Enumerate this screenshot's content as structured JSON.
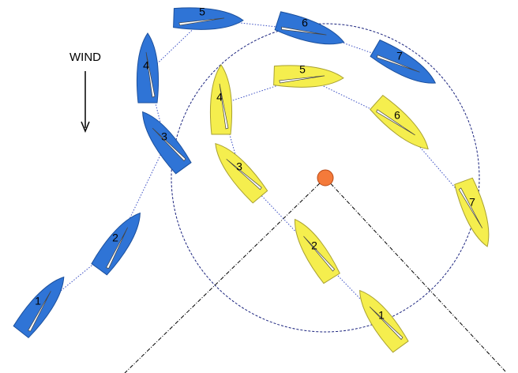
{
  "wind_label": "WIND",
  "blue_boats": [
    {
      "label": "1"
    },
    {
      "label": "2"
    },
    {
      "label": "3"
    },
    {
      "label": "4"
    },
    {
      "label": "5"
    },
    {
      "label": "6"
    },
    {
      "label": "7"
    }
  ],
  "yellow_boats": [
    {
      "label": "1"
    },
    {
      "label": "2"
    },
    {
      "label": "3"
    },
    {
      "label": "4"
    },
    {
      "label": "5"
    },
    {
      "label": "6"
    },
    {
      "label": "7"
    }
  ]
}
